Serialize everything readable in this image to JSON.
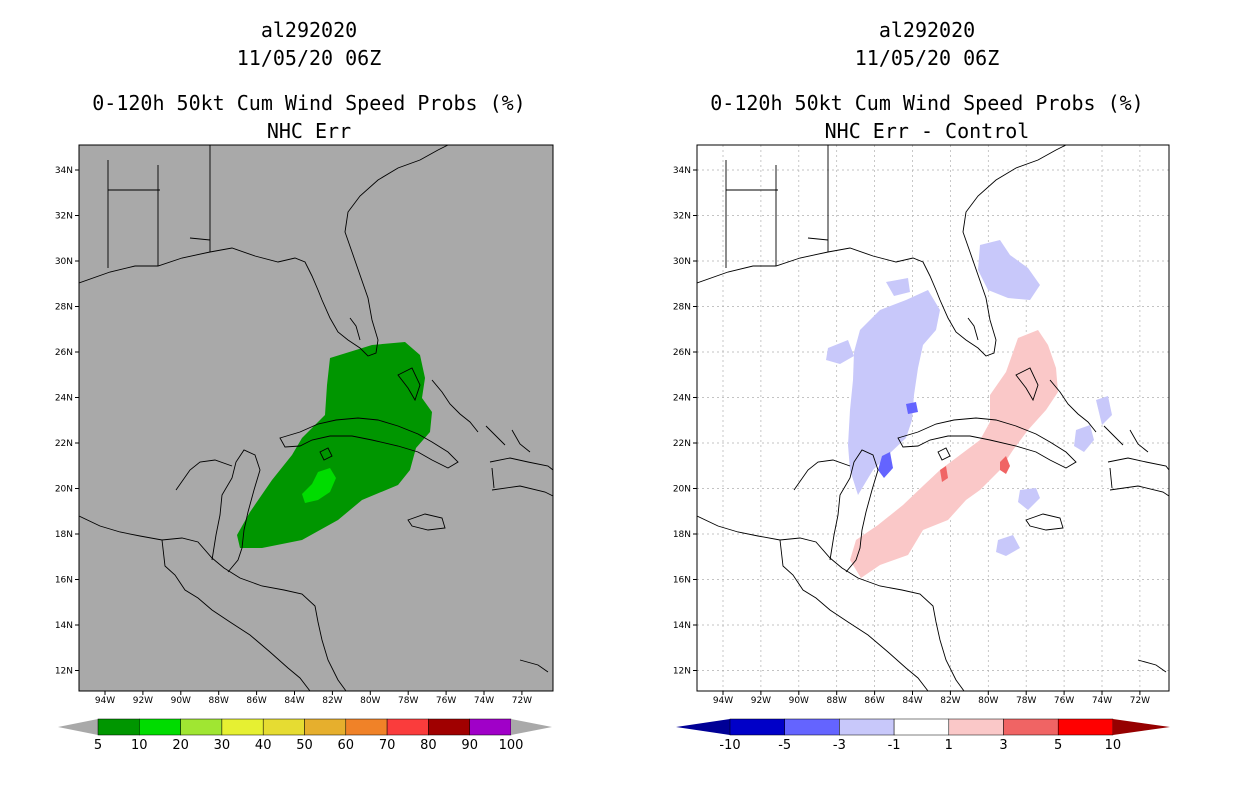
{
  "colors": {
    "left_bg": "#a9a9a9",
    "right_bg": "#ffffff",
    "prob_dark": "#009600",
    "prob_light": "#00dc00",
    "diff_pos": "#fac8c8",
    "diff_pos2": "#f06464",
    "diff_neg": "#c8c8fa",
    "diff_neg2": "#6464ff"
  },
  "left_panel": {
    "storm_id": "al292020",
    "datetime": "11/05/20 06Z",
    "product": "0-120h 50kt Cum Wind Speed Probs (%)",
    "subtitle": "NHC Err",
    "lat_labels": [
      "34N",
      "32N",
      "30N",
      "28N",
      "26N",
      "24N",
      "22N",
      "20N",
      "18N",
      "16N",
      "14N",
      "12N"
    ],
    "lon_labels": [
      "94W",
      "92W",
      "90W",
      "88W",
      "86W",
      "84W",
      "82W",
      "80W",
      "78W",
      "76W",
      "74W",
      "72W"
    ],
    "colorbar": {
      "labels": [
        "5",
        "10",
        "20",
        "30",
        "40",
        "50",
        "60",
        "70",
        "80",
        "90",
        "100"
      ],
      "colors": [
        "#009600",
        "#00dc00",
        "#a0e632",
        "#e6f032",
        "#e6dc32",
        "#e6af2d",
        "#f08228",
        "#fa3c3c",
        "#a00000",
        "#a000c8"
      ],
      "end_color": "#a9a9a9"
    }
  },
  "right_panel": {
    "storm_id": "al292020",
    "datetime": "11/05/20 06Z",
    "product": "0-120h 50kt Cum Wind Speed Probs (%)",
    "subtitle": "NHC Err - Control",
    "lat_labels": [
      "34N",
      "32N",
      "30N",
      "28N",
      "26N",
      "24N",
      "22N",
      "20N",
      "18N",
      "16N",
      "14N",
      "12N"
    ],
    "lon_labels": [
      "94W",
      "92W",
      "90W",
      "88W",
      "86W",
      "84W",
      "82W",
      "80W",
      "78W",
      "76W",
      "74W",
      "72W"
    ],
    "colorbar": {
      "labels": [
        "-10",
        "-5",
        "-3",
        "-1",
        "1",
        "3",
        "5",
        "10"
      ],
      "colors": [
        "#0000c8",
        "#6464ff",
        "#c8c8fa",
        "#ffffff",
        "#fac8c8",
        "#f06464",
        "#ff0000"
      ],
      "low_end": "#000096",
      "high_end": "#960000"
    }
  }
}
